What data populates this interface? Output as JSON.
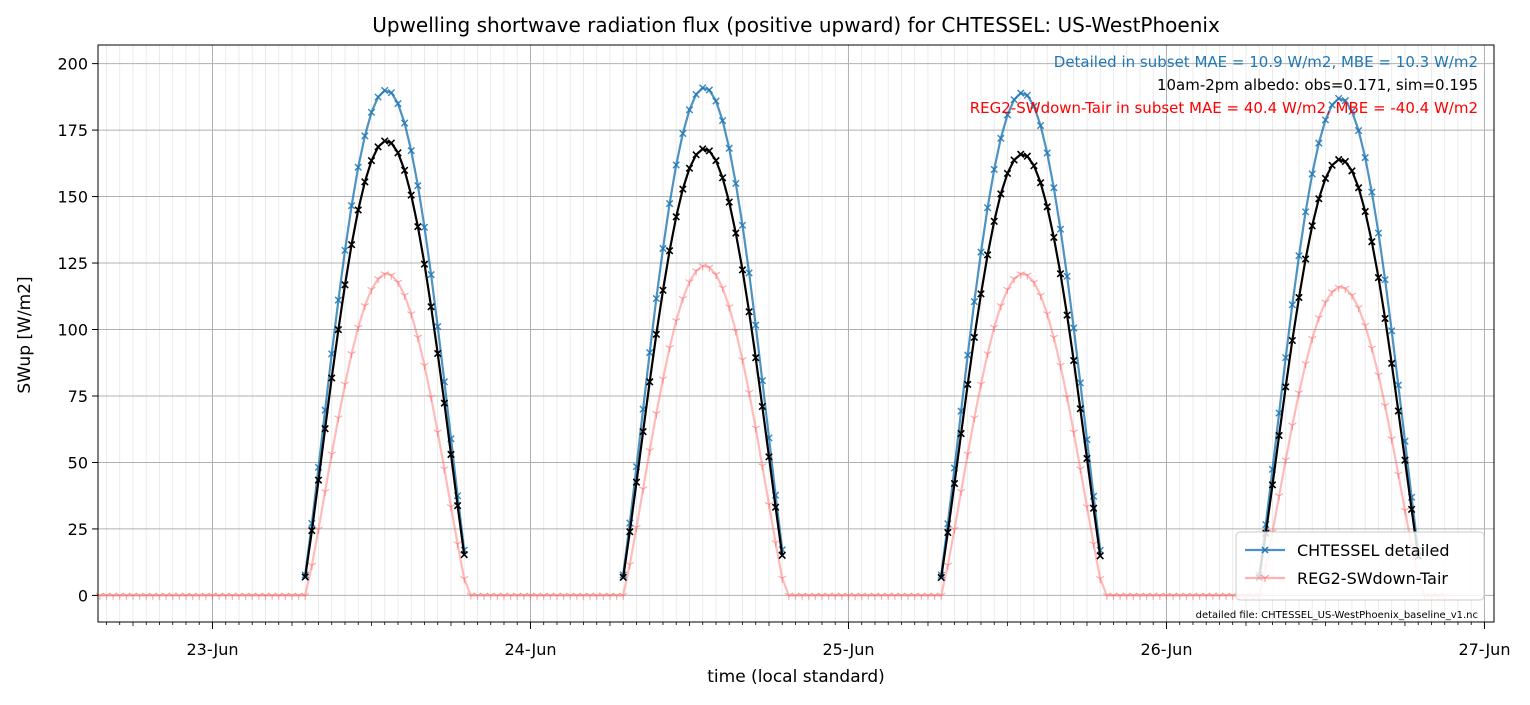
{
  "chart_data": {
    "type": "line",
    "title": "Upwelling shortwave radiation flux (positive upward) for CHTESSEL: US-WestPhoenix",
    "xlabel": "time (local standard)",
    "ylabel": "SWup [W/m2]",
    "x_unit": "days since 23-Jun 00:00 local standard",
    "xlim": [
      -0.36,
      4.03
    ],
    "ylim": [
      -10,
      207
    ],
    "x_ticks": [
      {
        "value": 0,
        "label": "23-Jun"
      },
      {
        "value": 1,
        "label": "24-Jun"
      },
      {
        "value": 2,
        "label": "25-Jun"
      },
      {
        "value": 3,
        "label": "26-Jun"
      },
      {
        "value": 4,
        "label": "27-Jun"
      }
    ],
    "y_ticks": [
      0,
      25,
      50,
      75,
      100,
      125,
      150,
      175,
      200
    ],
    "grid": true,
    "legend_position": "bottom-right",
    "annotations": [
      {
        "text": "Detailed in subset MAE = 10.9 W/m2, MBE = 10.3 W/m2",
        "color": "#1f77b4"
      },
      {
        "text": "10am-2pm albedo: obs=0.171, sim=0.195",
        "color": "#000000"
      },
      {
        "text": "REG2-SWdown-Tair in subset MAE = 40.4 W/m2, MBE = -40.4 W/m2",
        "color": "#ff0000"
      }
    ],
    "footnote": "detailed file: CHTESSEL_US-WestPhoenix_baseline_v1.nc",
    "days": [
      {
        "day_offset": 0,
        "obs_peak": 171,
        "detailed_peak": 190,
        "reg2_peak": 121
      },
      {
        "day_offset": 1,
        "obs_peak": 168,
        "detailed_peak": 191,
        "reg2_peak": 124
      },
      {
        "day_offset": 2,
        "obs_peak": 166,
        "detailed_peak": 189,
        "reg2_peak": 121
      },
      {
        "day_offset": 3,
        "obs_peak": 164,
        "detailed_peak": 187,
        "reg2_peak": 116
      }
    ],
    "series": [
      {
        "name": "CHTESSEL detailed",
        "color": "#1f77b4",
        "marker": "x",
        "alpha": 0.8
      },
      {
        "name": "REG2-SWdown-Tair",
        "color": "#ff6666",
        "marker": "tri",
        "alpha": 0.5
      },
      {
        "name": "",
        "color": "#000000",
        "marker": "x",
        "alpha": 1.0
      }
    ],
    "notes": {
      "daylight_start_hour": 6.75,
      "daylight_end_hour": 19.5,
      "reg2_window_hours": [
        7.0,
        19.3
      ],
      "step_hours": 0.5,
      "reg2_zero_range": [
        -0.36,
        4.03
      ]
    }
  }
}
